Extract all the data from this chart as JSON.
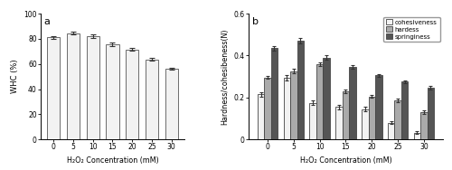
{
  "panel_a": {
    "categories": [
      0,
      5,
      10,
      15,
      20,
      25,
      30
    ],
    "whc_values": [
      81,
      84.5,
      82,
      75.5,
      71.5,
      63.5,
      56
    ],
    "whc_errors": [
      1.2,
      1.0,
      1.5,
      1.5,
      1.2,
      1.0,
      0.8
    ],
    "ylabel": "WHC (%)",
    "xlabel": "H₂O₂ Concentration (mM)",
    "ylim": [
      0,
      100
    ],
    "yticks": [
      0,
      20,
      40,
      60,
      80,
      100
    ],
    "bar_color": "#f2f2f2",
    "bar_edgecolor": "#555555",
    "label": "a"
  },
  "panel_b": {
    "categories": [
      0,
      5,
      10,
      15,
      20,
      25,
      30
    ],
    "cohesiveness": [
      0.215,
      0.295,
      0.175,
      0.155,
      0.145,
      0.08,
      0.032
    ],
    "hardness": [
      0.295,
      0.325,
      0.36,
      0.23,
      0.205,
      0.185,
      0.13
    ],
    "springiness": [
      0.435,
      0.47,
      0.39,
      0.345,
      0.305,
      0.275,
      0.245
    ],
    "cohesiveness_err": [
      0.012,
      0.012,
      0.01,
      0.01,
      0.01,
      0.008,
      0.007
    ],
    "hardness_err": [
      0.006,
      0.01,
      0.008,
      0.01,
      0.008,
      0.008,
      0.007
    ],
    "springiness_err": [
      0.012,
      0.012,
      0.01,
      0.01,
      0.008,
      0.008,
      0.008
    ],
    "ylabel": "Hardness/cohesibeness(N)",
    "xlabel": "H₂O₂ Concentration (mM)",
    "ylim": [
      0,
      0.6
    ],
    "yticks": [
      0.0,
      0.2,
      0.4,
      0.6
    ],
    "color_cohesiveness": "#f2f2f2",
    "color_hardness": "#aaaaaa",
    "color_springiness": "#555555",
    "bar_edgecolor": "#444444",
    "legend_labels": [
      "cohesiveness",
      "hardess",
      "springiness"
    ],
    "label": "b"
  },
  "figure_background": "#ffffff"
}
